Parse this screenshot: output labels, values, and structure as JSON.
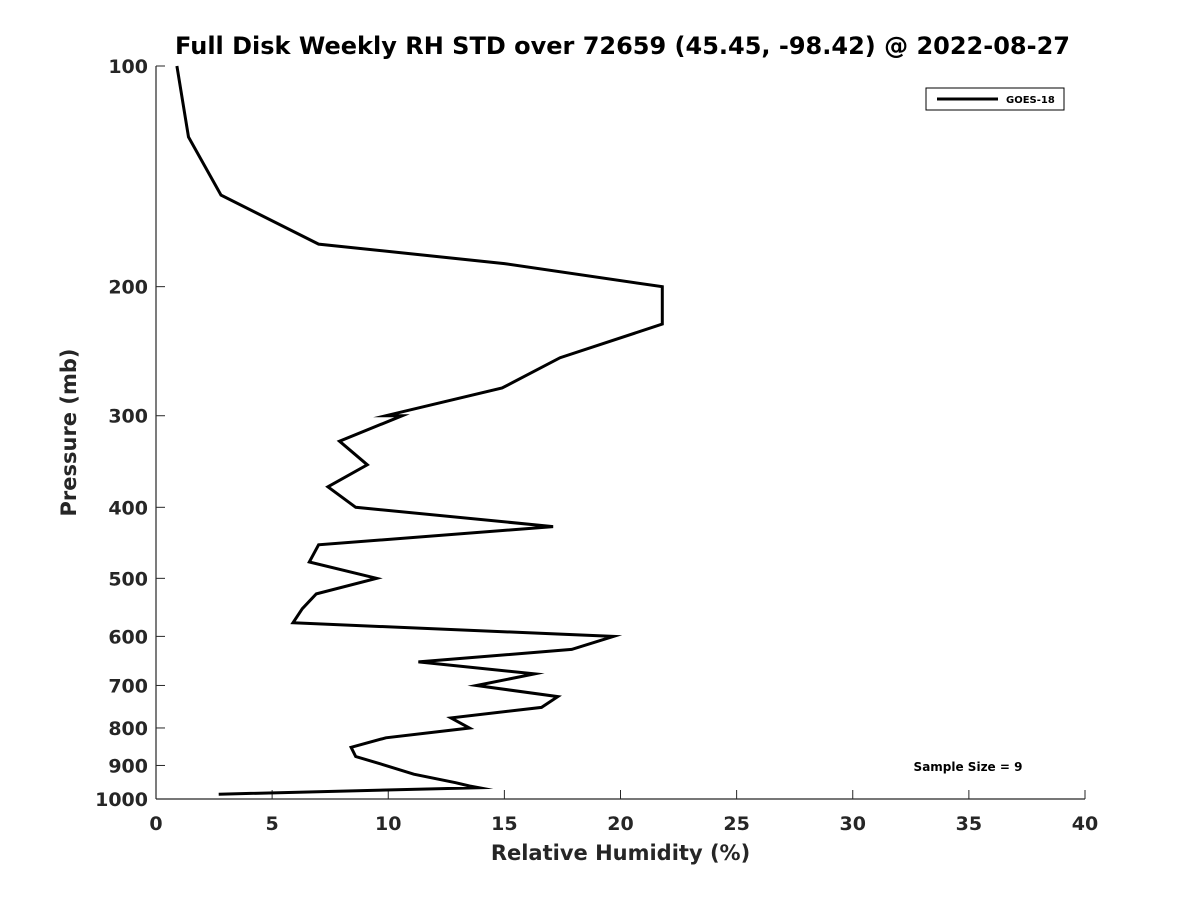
{
  "chart_data": {
    "type": "line",
    "title": "Full Disk Weekly RH STD over 72659 (45.45, -98.42) @ 2022-08-27",
    "xlabel": "Relative Humidity (%)",
    "ylabel": "Pressure (mb)",
    "xlim": [
      0,
      40
    ],
    "ylim": [
      1000,
      100
    ],
    "yscale": "log",
    "reverse_y": true,
    "grid": false,
    "legend_position": "top-right",
    "xticks": [
      0,
      5,
      10,
      15,
      20,
      25,
      30,
      35,
      40
    ],
    "yticks": [
      100,
      200,
      300,
      400,
      500,
      600,
      700,
      800,
      900,
      1000
    ],
    "series": [
      {
        "name": "GOES-18",
        "color": "#000000",
        "points": [
          {
            "x": 0.9,
            "y": 100
          },
          {
            "x": 1.4,
            "y": 125
          },
          {
            "x": 2.8,
            "y": 150
          },
          {
            "x": 7.0,
            "y": 175
          },
          {
            "x": 15.0,
            "y": 186
          },
          {
            "x": 21.8,
            "y": 200
          },
          {
            "x": 21.8,
            "y": 225
          },
          {
            "x": 17.4,
            "y": 250
          },
          {
            "x": 14.9,
            "y": 275
          },
          {
            "x": 9.9,
            "y": 300
          },
          {
            "x": 10.6,
            "y": 300
          },
          {
            "x": 7.9,
            "y": 325
          },
          {
            "x": 9.1,
            "y": 350
          },
          {
            "x": 7.4,
            "y": 375
          },
          {
            "x": 8.6,
            "y": 400
          },
          {
            "x": 17.1,
            "y": 425
          },
          {
            "x": 7.0,
            "y": 450
          },
          {
            "x": 6.6,
            "y": 475
          },
          {
            "x": 9.5,
            "y": 500
          },
          {
            "x": 6.9,
            "y": 525
          },
          {
            "x": 6.3,
            "y": 550
          },
          {
            "x": 5.9,
            "y": 575
          },
          {
            "x": 19.7,
            "y": 600
          },
          {
            "x": 17.9,
            "y": 625
          },
          {
            "x": 11.3,
            "y": 650
          },
          {
            "x": 16.3,
            "y": 675
          },
          {
            "x": 13.8,
            "y": 700
          },
          {
            "x": 17.3,
            "y": 725
          },
          {
            "x": 16.6,
            "y": 750
          },
          {
            "x": 12.7,
            "y": 775
          },
          {
            "x": 13.5,
            "y": 800
          },
          {
            "x": 9.9,
            "y": 825
          },
          {
            "x": 8.4,
            "y": 850
          },
          {
            "x": 8.6,
            "y": 875
          },
          {
            "x": 9.9,
            "y": 900
          },
          {
            "x": 11.1,
            "y": 925
          },
          {
            "x": 12.9,
            "y": 950
          },
          {
            "x": 13.5,
            "y": 960
          },
          {
            "x": 13.9,
            "y": 965
          },
          {
            "x": 2.7,
            "y": 985
          }
        ]
      }
    ],
    "annotations": [
      {
        "text": "Sample Size = 9",
        "x": 36.5,
        "y": 900
      }
    ]
  }
}
